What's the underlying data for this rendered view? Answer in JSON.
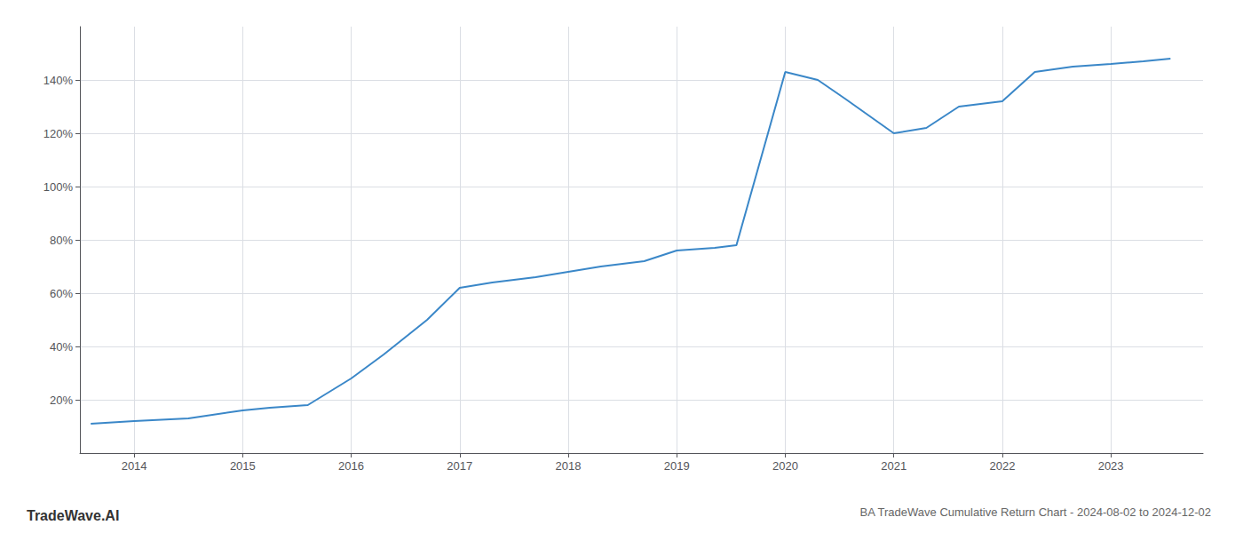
{
  "chart_data": {
    "type": "line",
    "title": "BA TradeWave Cumulative Return Chart - 2024-08-02 to 2024-12-02",
    "annotations": [
      "TradeWave.AI"
    ],
    "x": [
      2013.6,
      2014.0,
      2014.5,
      2015.0,
      2015.25,
      2015.6,
      2016.0,
      2016.3,
      2016.7,
      2017.0,
      2017.3,
      2017.7,
      2018.0,
      2018.3,
      2018.7,
      2019.0,
      2019.35,
      2019.55,
      2020.0,
      2020.3,
      2020.55,
      2021.0,
      2021.3,
      2021.6,
      2022.0,
      2022.3,
      2022.65,
      2023.0,
      2023.3,
      2023.55
    ],
    "values": [
      11,
      12,
      13,
      16,
      17,
      18,
      28,
      37,
      50,
      62,
      64,
      66,
      68,
      70,
      72,
      76,
      77,
      78,
      143,
      140,
      133,
      120,
      122,
      130,
      132,
      143,
      145,
      146,
      147,
      148
    ],
    "color": "#3a87c8",
    "xlim": [
      2013.5,
      2023.85
    ],
    "ylim": [
      0,
      160
    ],
    "xticks": [
      2014,
      2015,
      2016,
      2017,
      2018,
      2019,
      2020,
      2021,
      2022,
      2023
    ],
    "yticks": [
      {
        "value": 20,
        "label": "20%"
      },
      {
        "value": 40,
        "label": "40%"
      },
      {
        "value": 60,
        "label": "60%"
      },
      {
        "value": 80,
        "label": "80%"
      },
      {
        "value": 100,
        "label": "100%"
      },
      {
        "value": 120,
        "label": "120%"
      },
      {
        "value": 140,
        "label": "140%"
      }
    ],
    "grid": true
  }
}
